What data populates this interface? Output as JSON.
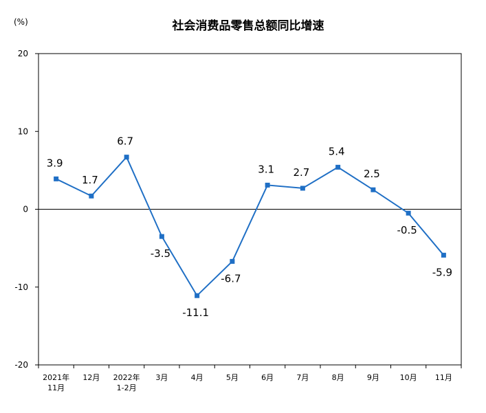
{
  "chart_data": {
    "type": "line",
    "title": "社会消费品零售总额同比增速",
    "unit_label": "(%)",
    "categories": [
      [
        "2021年",
        "11月"
      ],
      [
        "12月"
      ],
      [
        "2022年",
        "1-2月"
      ],
      [
        "3月"
      ],
      [
        "4月"
      ],
      [
        "5月"
      ],
      [
        "6月"
      ],
      [
        "7月"
      ],
      [
        "8月"
      ],
      [
        "9月"
      ],
      [
        "10月"
      ],
      [
        "11月"
      ]
    ],
    "values": [
      3.9,
      1.7,
      6.7,
      -3.5,
      -11.1,
      -6.7,
      3.1,
      2.7,
      5.4,
      2.5,
      -0.5,
      -5.9
    ],
    "data_labels": [
      "3.9",
      "1.7",
      "6.7",
      "-3.5",
      "-11.1",
      "-6.7",
      "3.1",
      "2.7",
      "5.4",
      "2.5",
      "-0.5",
      "-5.9"
    ],
    "label_position": [
      "above",
      "above",
      "above",
      "below",
      "below",
      "below",
      "above",
      "above",
      "above",
      "above",
      "below",
      "below"
    ],
    "ylim": [
      -20,
      20
    ],
    "yticks": [
      -20,
      -10,
      0,
      10,
      20
    ],
    "grid": false,
    "legend": "none",
    "colors": {
      "line": "#1F6FC5",
      "marker": "#1F6FC5",
      "axis": "#000000",
      "text": "#000000"
    }
  }
}
